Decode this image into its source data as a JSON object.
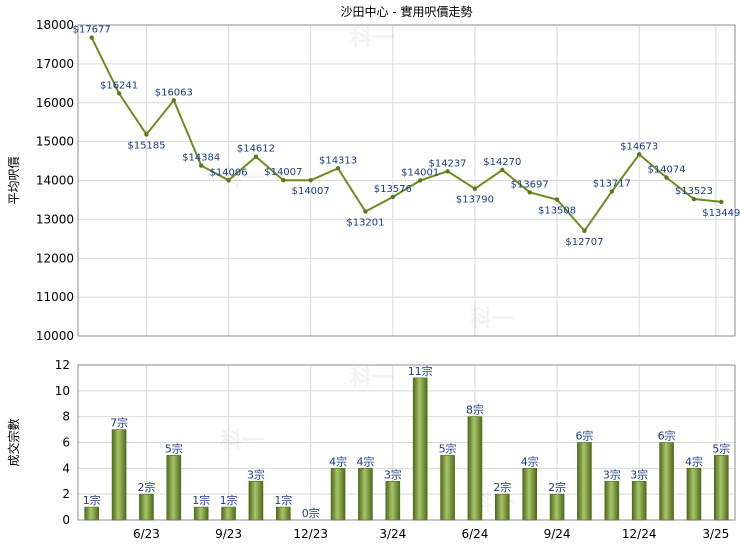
{
  "title": "沙田中心 - 實用呎價走勢",
  "colors": {
    "line": "#6b8e23",
    "marker": "#5a7a1a",
    "bar_light": "#a9c46a",
    "bar_dark": "#4e6b1c",
    "label": "#1a3c8c"
  },
  "watermark_text": "科一",
  "chart_data": [
    {
      "type": "line",
      "ylabel": "平均呎價",
      "ylim": [
        10000,
        18000
      ],
      "yticks": [
        10000,
        11000,
        12000,
        13000,
        14000,
        15000,
        16000,
        17000,
        18000
      ],
      "values": [
        17677,
        16241,
        15185,
        16063,
        14384,
        14006,
        14612,
        14007,
        14007,
        14313,
        13201,
        13576,
        14001,
        14237,
        13790,
        14270,
        13697,
        13508,
        12707,
        13717,
        14673,
        14074,
        13523,
        13449
      ],
      "labels": [
        "$17677",
        "$16241",
        "$15185",
        "$16063",
        "$14384",
        "$14006",
        "$14612",
        "$14007",
        "$14007",
        "$14313",
        "$13201",
        "$13576",
        "$14001",
        "$14237",
        "$13790",
        "$14270",
        "$13697",
        "$13508",
        "$12707",
        "$13717",
        "$14673",
        "$14074",
        "$13523",
        "$13449"
      ],
      "grid": true
    },
    {
      "type": "bar",
      "ylabel": "成交宗數",
      "ylim": [
        0,
        12
      ],
      "yticks": [
        0,
        2,
        4,
        6,
        8,
        10,
        12
      ],
      "values": [
        1,
        7,
        2,
        5,
        1,
        1,
        3,
        1,
        0,
        4,
        4,
        3,
        11,
        5,
        8,
        2,
        4,
        2,
        6,
        3,
        3,
        6,
        4,
        5
      ],
      "labels": [
        "1宗",
        "7宗",
        "2宗",
        "5宗",
        "1宗",
        "1宗",
        "3宗",
        "1宗",
        "0宗",
        "4宗",
        "4宗",
        "3宗",
        "11宗",
        "5宗",
        "8宗",
        "2宗",
        "4宗",
        "2宗",
        "6宗",
        "3宗",
        "3宗",
        "6宗",
        "4宗",
        "5宗"
      ],
      "x_tick_labels": [
        {
          "label": "6/23",
          "index": 2.5
        },
        {
          "label": "9/23",
          "index": 5.5
        },
        {
          "label": "12/23",
          "index": 8.5
        },
        {
          "label": "3/24",
          "index": 11.5
        },
        {
          "label": "6/24",
          "index": 14.5
        },
        {
          "label": "9/24",
          "index": 17.5
        },
        {
          "label": "12/24",
          "index": 20.5
        },
        {
          "label": "3/25",
          "index": 23.3
        }
      ],
      "grid": true
    }
  ]
}
